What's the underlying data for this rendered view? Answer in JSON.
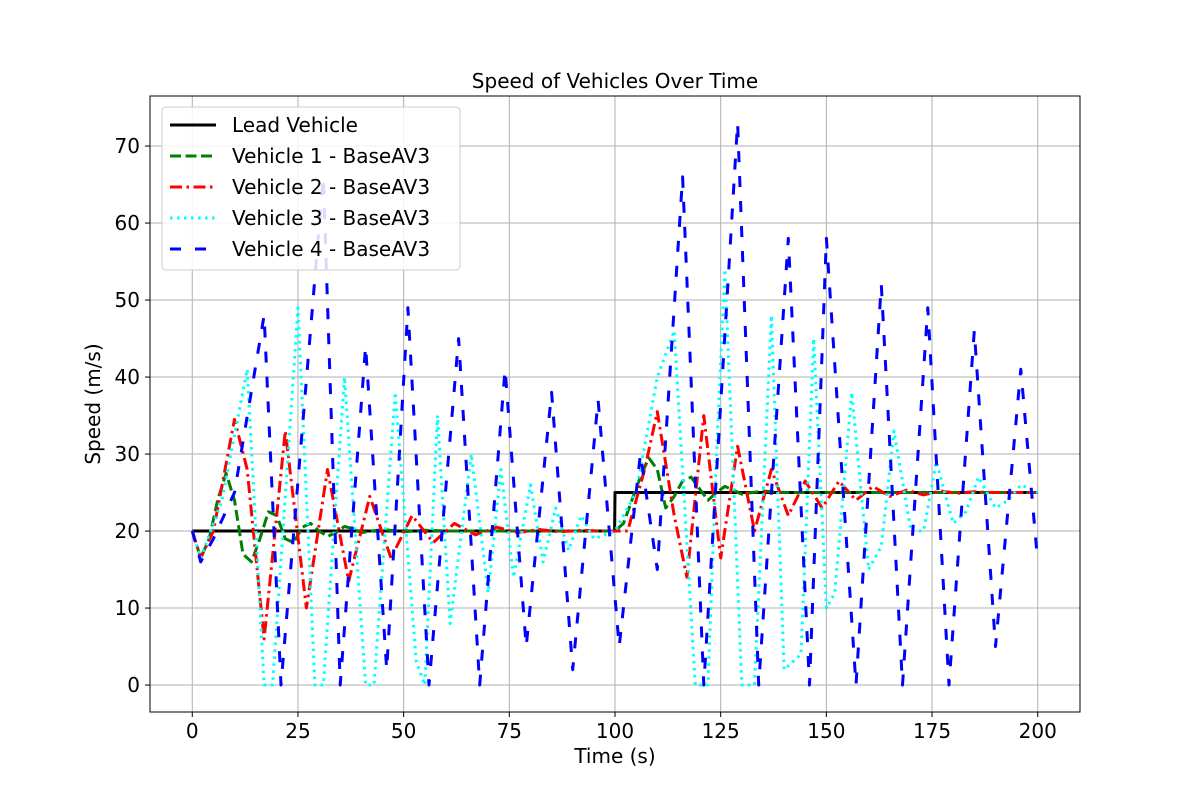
{
  "chart_data": {
    "type": "line",
    "title": "Speed of Vehicles Over Time",
    "xlabel": "Time (s)",
    "ylabel": "Speed (m/s)",
    "xlim": [
      -10,
      210
    ],
    "ylim": [
      -3.5,
      76.5
    ],
    "xticks": [
      0,
      25,
      50,
      75,
      100,
      125,
      150,
      175,
      200
    ],
    "yticks": [
      0,
      10,
      20,
      30,
      40,
      50,
      60,
      70
    ],
    "grid": true,
    "legend_position": "top-left",
    "series": [
      {
        "name": "Lead Vehicle",
        "color": "#000000",
        "style": "solid",
        "x": [
          0,
          99.9,
          100,
          200
        ],
        "y": [
          20,
          20,
          25,
          25
        ]
      },
      {
        "name": "Vehicle 1 - BaseAV3",
        "color": "#008000",
        "style": "dashed",
        "x": [
          0,
          2,
          4,
          6,
          8,
          10,
          12,
          14,
          16,
          18,
          20,
          22,
          24,
          26,
          28,
          30,
          32,
          34,
          36,
          38,
          40,
          45,
          50,
          55,
          60,
          70,
          80,
          90,
          100,
          102,
          104,
          106,
          108,
          110,
          112,
          114,
          116,
          118,
          120,
          122,
          124,
          126,
          128,
          130,
          135,
          140,
          150,
          200
        ],
        "y": [
          20,
          16.5,
          19,
          24,
          27.5,
          24,
          17,
          16,
          19,
          22.5,
          22,
          19,
          18.5,
          20.5,
          21,
          20,
          19.3,
          19.8,
          20.6,
          20.3,
          19.8,
          20.2,
          19.9,
          20.1,
          20,
          20,
          20,
          20,
          20,
          21,
          24,
          27,
          29.5,
          28,
          23,
          24.5,
          26.5,
          27,
          25.5,
          24,
          25,
          25.8,
          25.3,
          24.8,
          25.2,
          25,
          25,
          25
        ]
      },
      {
        "name": "Vehicle 2 - BaseAV3",
        "color": "#ff0000",
        "style": "dashdot",
        "x": [
          0,
          2,
          5,
          10,
          13,
          17,
          22,
          27,
          32,
          37,
          42,
          47,
          52,
          57,
          62,
          67,
          72,
          77,
          82,
          87,
          92,
          97,
          100,
          103,
          107,
          110,
          114,
          117,
          121,
          125,
          129,
          133,
          137,
          141,
          145,
          149,
          153,
          157,
          161,
          165,
          169,
          173,
          177,
          181,
          185,
          189,
          193,
          200
        ],
        "y": [
          20,
          16.5,
          20,
          34.5,
          28,
          6,
          33,
          10,
          28,
          13.5,
          24.5,
          16.5,
          22,
          18.5,
          21,
          19.5,
          20.5,
          19.8,
          20.2,
          19.9,
          20.1,
          20,
          20,
          20,
          28,
          35.5,
          22,
          14,
          35,
          16.5,
          31,
          20,
          28,
          22,
          26.5,
          23,
          26.5,
          24,
          25.8,
          24.5,
          25.3,
          24.7,
          25.2,
          24.9,
          25.1,
          25,
          25,
          25
        ]
      },
      {
        "name": "Vehicle 3 - BaseAV3",
        "color": "#00ffff",
        "style": "dotted",
        "x": [
          0,
          2,
          7,
          13,
          17,
          19,
          25,
          29,
          31,
          36,
          41,
          43,
          48,
          53,
          55,
          58,
          61,
          66,
          70,
          73,
          76,
          80,
          83,
          86,
          89,
          92,
          95,
          100,
          105,
          110,
          114,
          119,
          122,
          124,
          126,
          130,
          133,
          137,
          140,
          144,
          147,
          150,
          152,
          156,
          160,
          163,
          166,
          170,
          173,
          176,
          180,
          183,
          186,
          190,
          193,
          196,
          200
        ],
        "y": [
          20,
          16.5,
          24,
          41,
          0,
          0,
          49,
          0,
          0,
          40,
          0,
          0,
          38,
          3,
          0,
          35,
          8,
          30,
          12,
          28,
          14,
          26,
          16,
          23,
          17.5,
          22,
          19,
          20,
          25,
          40,
          46,
          0,
          0,
          30,
          54,
          0,
          0,
          48,
          2,
          4,
          45,
          10,
          12,
          38,
          15,
          18,
          33,
          20,
          20,
          29,
          21,
          22.5,
          27,
          23,
          24,
          26,
          25
        ]
      },
      {
        "name": "Vehicle 4 - BaseAV3",
        "color": "#0000ff",
        "style": "loosedash",
        "x": [
          0,
          2,
          5,
          10,
          17,
          21,
          31,
          35,
          41,
          46,
          51,
          56,
          63,
          68,
          74,
          79,
          85,
          90,
          96,
          101,
          106,
          110,
          116,
          121,
          129,
          134,
          141,
          146,
          150,
          157,
          163,
          168,
          174,
          179,
          185,
          190,
          196,
          200
        ],
        "y": [
          20,
          16,
          19,
          25,
          48,
          0,
          66,
          0,
          44,
          2,
          49,
          0,
          45,
          0,
          41,
          5,
          38,
          2,
          37,
          5,
          30,
          15,
          66,
          0,
          73,
          0,
          58,
          0,
          58,
          0,
          52,
          0,
          49,
          0,
          46,
          5,
          41,
          16
        ]
      }
    ]
  }
}
